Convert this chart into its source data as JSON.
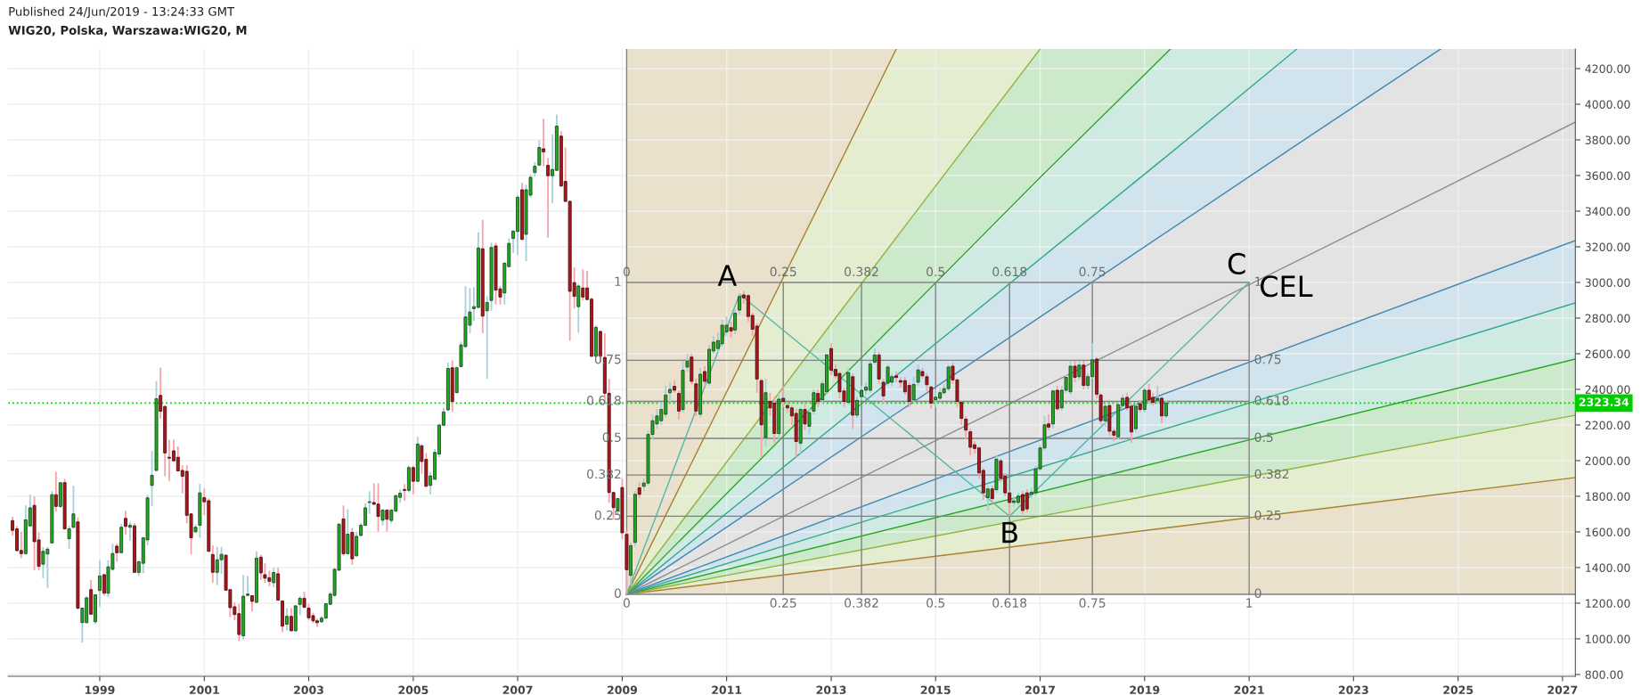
{
  "chart_data": {
    "type": "candlestick",
    "title": "WIG20, Polska, Warszawa:WIG20, M",
    "annotations": [
      "Published 24/Jun/2019 - 13:24:33 GMT",
      {
        "text": "A",
        "x": "2011-04",
        "y": 2934
      },
      {
        "text": "B",
        "x": "2016-06",
        "y": 1688
      },
      {
        "text": "C",
        "x": "2021-01",
        "y": 3000
      },
      {
        "text": "CEL",
        "x": "2021-01",
        "y": 3000
      },
      {
        "text": "1",
        "x": "2009-02",
        "y": 3000
      },
      {
        "text": "0.75",
        "x": "2009-02",
        "y": 2563
      },
      {
        "text": "0.618",
        "x": "2009-02",
        "y": 2332
      },
      {
        "text": "0.5",
        "x": "2009-02",
        "y": 2125
      },
      {
        "text": "0.382",
        "x": "2009-02",
        "y": 1919
      },
      {
        "text": "0.25",
        "x": "2009-02",
        "y": 1688
      },
      {
        "text": "0",
        "x": "2009-02",
        "y": 1250
      },
      {
        "text": "0",
        "x": "2009-02",
        "y": 3000
      },
      {
        "text": "0.25",
        "x": "2012-02",
        "y": 3000
      },
      {
        "text": "0.382",
        "x": "2013-08",
        "y": 3000
      },
      {
        "text": "0.5",
        "x": "2015-01",
        "y": 3000
      },
      {
        "text": "0.618",
        "x": "2016-06",
        "y": 3000
      },
      {
        "text": "0.75",
        "x": "2018-01",
        "y": 3000
      },
      {
        "text": "1",
        "x": "2021-01",
        "y": 3000
      },
      {
        "text": "0.75",
        "x": "2021-01",
        "y": 2563
      },
      {
        "text": "0.618",
        "x": "2021-01",
        "y": 2332
      },
      {
        "text": "0.5",
        "x": "2021-01",
        "y": 2125
      },
      {
        "text": "0.382",
        "x": "2021-01",
        "y": 1919
      },
      {
        "text": "0.25",
        "x": "2021-01",
        "y": 1688
      },
      {
        "text": "0",
        "x": "2021-01",
        "y": 1250
      },
      {
        "text": "0",
        "x": "2009-02",
        "y": 1250
      },
      {
        "text": "0.25",
        "x": "2012-02",
        "y": 1250
      },
      {
        "text": "0.382",
        "x": "2013-08",
        "y": 1250
      },
      {
        "text": "0.5",
        "x": "2015-01",
        "y": 1250
      },
      {
        "text": "0.618",
        "x": "2016-06",
        "y": 1250
      },
      {
        "text": "0.75",
        "x": "2018-01",
        "y": 1250
      },
      {
        "text": "1",
        "x": "2021-01",
        "y": 1250
      }
    ],
    "x": [
      "1997-05",
      "1997-06",
      "1997-07",
      "1997-08",
      "1997-09",
      "1997-10",
      "1997-11",
      "1997-12",
      "1998-01",
      "1998-02",
      "1998-03",
      "1998-04",
      "1998-05",
      "1998-06",
      "1998-07",
      "1998-08",
      "1998-09",
      "1998-10",
      "1998-11",
      "1998-12",
      "1999-01",
      "1999-02",
      "1999-03",
      "1999-04",
      "1999-05",
      "1999-06",
      "1999-07",
      "1999-08",
      "1999-09",
      "1999-10",
      "1999-11",
      "1999-12",
      "2000-01",
      "2000-02",
      "2000-03",
      "2000-04",
      "2000-05",
      "2000-06",
      "2000-07",
      "2000-08",
      "2000-09",
      "2000-10",
      "2000-11",
      "2000-12",
      "2001-01",
      "2001-02",
      "2001-03",
      "2001-04",
      "2001-05",
      "2001-06",
      "2001-07",
      "2001-08",
      "2001-09",
      "2001-10",
      "2001-11",
      "2001-12",
      "2002-01",
      "2002-02",
      "2002-03",
      "2002-04",
      "2002-05",
      "2002-06",
      "2002-07",
      "2002-08",
      "2002-09",
      "2002-10",
      "2002-11",
      "2002-12",
      "2003-01",
      "2003-02",
      "2003-03",
      "2003-04",
      "2003-05",
      "2003-06",
      "2003-07",
      "2003-08",
      "2003-09",
      "2003-10",
      "2003-11",
      "2003-12",
      "2004-01",
      "2004-02",
      "2004-03",
      "2004-04",
      "2004-05",
      "2004-06",
      "2004-07",
      "2004-08",
      "2004-09",
      "2004-10",
      "2004-11",
      "2004-12",
      "2005-01",
      "2005-02",
      "2005-03",
      "2005-04",
      "2005-05",
      "2005-06",
      "2005-07",
      "2005-08",
      "2005-09",
      "2005-10",
      "2005-11",
      "2005-12",
      "2006-01",
      "2006-02",
      "2006-03",
      "2006-04",
      "2006-05",
      "2006-06",
      "2006-07",
      "2006-08",
      "2006-09",
      "2006-10",
      "2006-11",
      "2006-12",
      "2007-01",
      "2007-02",
      "2007-03",
      "2007-04",
      "2007-05",
      "2007-06",
      "2007-07",
      "2007-08",
      "2007-09",
      "2007-10",
      "2007-11",
      "2007-12",
      "2008-01",
      "2008-02",
      "2008-03",
      "2008-04",
      "2008-05",
      "2008-06",
      "2008-07",
      "2008-08",
      "2008-09",
      "2008-10",
      "2008-11",
      "2008-12",
      "2009-01",
      "2009-02",
      "2009-03",
      "2009-04",
      "2009-05",
      "2009-06",
      "2009-07",
      "2009-08",
      "2009-09",
      "2009-10",
      "2009-11",
      "2009-12",
      "2010-01",
      "2010-02",
      "2010-03",
      "2010-04",
      "2010-05",
      "2010-06",
      "2010-07",
      "2010-08",
      "2010-09",
      "2010-10",
      "2010-11",
      "2010-12",
      "2011-01",
      "2011-02",
      "2011-03",
      "2011-04",
      "2011-05",
      "2011-06",
      "2011-07",
      "2011-08",
      "2011-09",
      "2011-10",
      "2011-11",
      "2011-12",
      "2012-01",
      "2012-02",
      "2012-03",
      "2012-04",
      "2012-05",
      "2012-06",
      "2012-07",
      "2012-08",
      "2012-09",
      "2012-10",
      "2012-11",
      "2012-12",
      "2013-01",
      "2013-02",
      "2013-03",
      "2013-04",
      "2013-05",
      "2013-06",
      "2013-07",
      "2013-08",
      "2013-09",
      "2013-10",
      "2013-11",
      "2013-12",
      "2014-01",
      "2014-02",
      "2014-03",
      "2014-04",
      "2014-05",
      "2014-06",
      "2014-07",
      "2014-08",
      "2014-09",
      "2014-10",
      "2014-11",
      "2014-12",
      "2015-01",
      "2015-02",
      "2015-03",
      "2015-04",
      "2015-05",
      "2015-06",
      "2015-07",
      "2015-08",
      "2015-09",
      "2015-10",
      "2015-11",
      "2015-12",
      "2016-01",
      "2016-02",
      "2016-03",
      "2016-04",
      "2016-05",
      "2016-06",
      "2016-07",
      "2016-08",
      "2016-09",
      "2016-10",
      "2016-11",
      "2016-12",
      "2017-01",
      "2017-02",
      "2017-03",
      "2017-04",
      "2017-05",
      "2017-06",
      "2017-07",
      "2017-08",
      "2017-09",
      "2017-10",
      "2017-11",
      "2017-12",
      "2018-01",
      "2018-02",
      "2018-03",
      "2018-04",
      "2018-05",
      "2018-06",
      "2018-07",
      "2018-08",
      "2018-09",
      "2018-10",
      "2018-11",
      "2018-12",
      "2019-01",
      "2019-02",
      "2019-03",
      "2019-04",
      "2019-05",
      "2019-06"
    ],
    "ohlc": [
      [
        1663,
        1685,
        1580,
        1609
      ],
      [
        1617,
        1634,
        1491,
        1495
      ],
      [
        1496,
        1601,
        1453,
        1478
      ],
      [
        1478,
        1749,
        1474,
        1668
      ],
      [
        1634,
        1809,
        1630,
        1735
      ],
      [
        1749,
        1799,
        1385,
        1545
      ],
      [
        1555,
        1597,
        1385,
        1407
      ],
      [
        1419,
        1516,
        1340,
        1491
      ],
      [
        1476,
        1516,
        1286,
        1503
      ],
      [
        1538,
        1828,
        1536,
        1809
      ],
      [
        1809,
        1937,
        1715,
        1743
      ],
      [
        1743,
        1880,
        1735,
        1876
      ],
      [
        1876,
        1897,
        1614,
        1617
      ],
      [
        1562,
        1634,
        1505,
        1617
      ],
      [
        1626,
        1860,
        1620,
        1701
      ],
      [
        1656,
        1681,
        1165,
        1172
      ],
      [
        1091,
        1175,
        978,
        1172
      ],
      [
        1091,
        1239,
        1085,
        1230
      ],
      [
        1276,
        1331,
        1135,
        1138
      ],
      [
        1096,
        1250,
        1082,
        1247
      ],
      [
        1271,
        1441,
        1180,
        1353
      ],
      [
        1360,
        1365,
        1244,
        1256
      ],
      [
        1256,
        1441,
        1234,
        1404
      ],
      [
        1390,
        1533,
        1382,
        1479
      ],
      [
        1520,
        1533,
        1432,
        1483
      ],
      [
        1483,
        1646,
        1480,
        1626
      ],
      [
        1676,
        1718,
        1584,
        1631
      ],
      [
        1626,
        1656,
        1550,
        1637
      ],
      [
        1634,
        1648,
        1370,
        1373
      ],
      [
        1373,
        1441,
        1352,
        1432
      ],
      [
        1424,
        1570,
        1368,
        1567
      ],
      [
        1555,
        1809,
        1525,
        1791
      ],
      [
        1861,
        2055,
        1743,
        1917
      ],
      [
        1945,
        2447,
        1940,
        2347
      ],
      [
        2366,
        2521,
        2236,
        2277
      ],
      [
        2304,
        2310,
        1912,
        2043
      ],
      [
        2019,
        2117,
        1886,
        2014
      ],
      [
        2055,
        2117,
        1995,
        1999
      ],
      [
        2019,
        2080,
        1940,
        1942
      ],
      [
        1945,
        1974,
        1816,
        1912
      ],
      [
        1940,
        1974,
        1648,
        1693
      ],
      [
        1701,
        1705,
        1474,
        1567
      ],
      [
        1601,
        1642,
        1592,
        1626
      ],
      [
        1637,
        1870,
        1567,
        1819
      ],
      [
        1792,
        1844,
        1693,
        1769
      ],
      [
        1775,
        1789,
        1488,
        1491
      ],
      [
        1473,
        1525,
        1315,
        1373
      ],
      [
        1373,
        1516,
        1301,
        1444
      ],
      [
        1444,
        1516,
        1365,
        1474
      ],
      [
        1469,
        1475,
        1270,
        1273
      ],
      [
        1276,
        1280,
        1121,
        1175
      ],
      [
        1180,
        1205,
        1104,
        1136
      ],
      [
        1141,
        1197,
        987,
        1024
      ],
      [
        1017,
        1357,
        995,
        1239
      ],
      [
        1244,
        1353,
        1239,
        1251
      ],
      [
        1242,
        1245,
        1155,
        1210
      ],
      [
        1205,
        1491,
        1200,
        1453
      ],
      [
        1458,
        1471,
        1331,
        1370
      ],
      [
        1360,
        1424,
        1315,
        1340
      ],
      [
        1343,
        1382,
        1294,
        1323
      ],
      [
        1315,
        1399,
        1289,
        1372
      ],
      [
        1365,
        1399,
        1215,
        1217
      ],
      [
        1212,
        1215,
        1037,
        1071
      ],
      [
        1082,
        1172,
        1049,
        1126
      ],
      [
        1126,
        1172,
        1042,
        1045
      ],
      [
        1045,
        1190,
        1042,
        1185
      ],
      [
        1193,
        1239,
        1133,
        1227
      ],
      [
        1227,
        1264,
        1172,
        1177
      ],
      [
        1172,
        1197,
        1104,
        1118
      ],
      [
        1130,
        1147,
        1088,
        1101
      ],
      [
        1101,
        1113,
        1066,
        1091
      ],
      [
        1096,
        1130,
        1088,
        1116
      ],
      [
        1116,
        1200,
        1113,
        1197
      ],
      [
        1194,
        1264,
        1188,
        1251
      ],
      [
        1244,
        1399,
        1234,
        1390
      ],
      [
        1385,
        1650,
        1380,
        1643
      ],
      [
        1673,
        1749,
        1466,
        1478
      ],
      [
        1478,
        1727,
        1474,
        1587
      ],
      [
        1597,
        1621,
        1415,
        1449
      ],
      [
        1466,
        1600,
        1460,
        1575
      ],
      [
        1580,
        1651,
        1575,
        1637
      ],
      [
        1637,
        1760,
        1634,
        1735
      ],
      [
        1765,
        1828,
        1701,
        1769
      ],
      [
        1765,
        1873,
        1750,
        1755
      ],
      [
        1756,
        1872,
        1601,
        1687
      ],
      [
        1666,
        1728,
        1636,
        1722
      ],
      [
        1722,
        1728,
        1601,
        1671
      ],
      [
        1664,
        1728,
        1648,
        1722
      ],
      [
        1717,
        1810,
        1712,
        1803
      ],
      [
        1794,
        1838,
        1763,
        1817
      ],
      [
        1838,
        1868,
        1775,
        1833
      ],
      [
        1833,
        1972,
        1822,
        1961
      ],
      [
        1961,
        1972,
        1810,
        1884
      ],
      [
        1884,
        2134,
        1880,
        2093
      ],
      [
        2083,
        2093,
        1926,
        1995
      ],
      [
        2007,
        2042,
        1852,
        1856
      ],
      [
        1861,
        1937,
        1810,
        1914
      ],
      [
        1896,
        2065,
        1891,
        2046
      ],
      [
        2037,
        2208,
        2018,
        2199
      ],
      [
        2199,
        2297,
        2192,
        2273
      ],
      [
        2285,
        2551,
        2278,
        2517
      ],
      [
        2521,
        2563,
        2273,
        2331
      ],
      [
        2382,
        2528,
        2378,
        2521
      ],
      [
        2528,
        2668,
        2524,
        2649
      ],
      [
        2640,
        2980,
        2633,
        2806
      ],
      [
        2760,
        2969,
        2714,
        2834
      ],
      [
        2853,
        2973,
        2783,
        2864
      ],
      [
        2860,
        3281,
        2853,
        3193
      ],
      [
        3189,
        3351,
        2714,
        2811
      ],
      [
        2841,
        2922,
        2459,
        2887
      ],
      [
        2899,
        3223,
        2841,
        3196
      ],
      [
        3205,
        3223,
        2876,
        2957
      ],
      [
        2964,
        2980,
        2876,
        2918
      ],
      [
        2941,
        3112,
        2876,
        3108
      ],
      [
        3089,
        3247,
        3084,
        3219
      ],
      [
        3247,
        3293,
        3166,
        3288
      ],
      [
        3286,
        3490,
        3154,
        3478
      ],
      [
        3520,
        3560,
        3235,
        3242
      ],
      [
        3270,
        3548,
        3119,
        3520
      ],
      [
        3490,
        3606,
        3478,
        3590
      ],
      [
        3617,
        3675,
        3594,
        3652
      ],
      [
        3659,
        3798,
        3652,
        3757
      ],
      [
        3750,
        3919,
        3652,
        3733
      ],
      [
        3657,
        3699,
        3251,
        3599
      ],
      [
        3599,
        3831,
        3444,
        3634
      ],
      [
        3629,
        3942,
        3625,
        3877
      ],
      [
        3821,
        3849,
        3536,
        3541
      ],
      [
        3567,
        3757,
        3450,
        3455
      ],
      [
        3455,
        3460,
        2672,
        2950
      ],
      [
        2999,
        3084,
        2853,
        2922
      ],
      [
        2864,
        2992,
        2718,
        2980
      ],
      [
        2969,
        3073,
        2899,
        2918
      ],
      [
        2969,
        3066,
        2899,
        2904
      ],
      [
        2906,
        2915,
        2580,
        2586
      ],
      [
        2586,
        2760,
        2580,
        2748
      ],
      [
        2725,
        2730,
        2551,
        2586
      ],
      [
        2579,
        2714,
        2320,
        2378
      ],
      [
        2378,
        2459,
        1763,
        1821
      ],
      [
        1821,
        1826,
        1671,
        1736
      ],
      [
        1722,
        1791,
        1694,
        1787
      ],
      [
        1849,
        1900,
        1560,
        1595
      ],
      [
        1586,
        1610,
        1250,
        1388
      ],
      [
        1356,
        1540,
        1300,
        1523
      ],
      [
        1541,
        1830,
        1520,
        1811
      ],
      [
        1847,
        1880,
        1790,
        1811
      ],
      [
        1856,
        1900,
        1830,
        1874
      ],
      [
        1874,
        2170,
        1860,
        2147
      ],
      [
        2147,
        2260,
        2120,
        2224
      ],
      [
        2206,
        2290,
        2180,
        2251
      ],
      [
        2224,
        2330,
        2200,
        2287
      ],
      [
        2260,
        2420,
        2240,
        2368
      ],
      [
        2381,
        2440,
        2330,
        2400
      ],
      [
        2417,
        2450,
        2380,
        2395
      ],
      [
        2377,
        2395,
        2230,
        2278
      ],
      [
        2287,
        2560,
        2270,
        2507
      ],
      [
        2525,
        2600,
        2500,
        2557
      ],
      [
        2581,
        2600,
        2430,
        2445
      ],
      [
        2431,
        2460,
        2250,
        2278
      ],
      [
        2260,
        2520,
        2240,
        2485
      ],
      [
        2500,
        2530,
        2420,
        2445
      ],
      [
        2435,
        2650,
        2420,
        2625
      ],
      [
        2615,
        2700,
        2600,
        2665
      ],
      [
        2629,
        2720,
        2610,
        2674
      ],
      [
        2656,
        2790,
        2640,
        2760
      ],
      [
        2723,
        2810,
        2700,
        2760
      ],
      [
        2746,
        2780,
        2690,
        2728
      ],
      [
        2733,
        2850,
        2710,
        2827
      ],
      [
        2845,
        2940,
        2820,
        2921
      ],
      [
        2930,
        2950,
        2880,
        2913
      ],
      [
        2926,
        2935,
        2780,
        2809
      ],
      [
        2815,
        2830,
        2700,
        2737
      ],
      [
        2755,
        2770,
        2380,
        2458
      ],
      [
        2449,
        2460,
        2020,
        2201
      ],
      [
        2129,
        2460,
        2080,
        2381
      ],
      [
        2332,
        2380,
        2250,
        2296
      ],
      [
        2323,
        2360,
        2100,
        2152
      ],
      [
        2152,
        2380,
        2120,
        2345
      ],
      [
        2350,
        2420,
        2300,
        2332
      ],
      [
        2309,
        2330,
        2270,
        2296
      ],
      [
        2296,
        2310,
        2200,
        2251
      ],
      [
        2265,
        2290,
        2020,
        2107
      ],
      [
        2098,
        2300,
        2040,
        2287
      ],
      [
        2287,
        2330,
        2170,
        2206
      ],
      [
        2193,
        2290,
        2150,
        2269
      ],
      [
        2278,
        2400,
        2260,
        2381
      ],
      [
        2377,
        2400,
        2300,
        2332
      ],
      [
        2341,
        2450,
        2320,
        2431
      ],
      [
        2386,
        2600,
        2370,
        2593
      ],
      [
        2629,
        2660,
        2480,
        2507
      ],
      [
        2512,
        2540,
        2460,
        2476
      ],
      [
        2489,
        2500,
        2350,
        2386
      ],
      [
        2391,
        2410,
        2300,
        2332
      ],
      [
        2327,
        2520,
        2310,
        2494
      ],
      [
        2471,
        2490,
        2180,
        2255
      ],
      [
        2255,
        2360,
        2240,
        2338
      ],
      [
        2359,
        2420,
        2340,
        2395
      ],
      [
        2395,
        2440,
        2370,
        2413
      ],
      [
        2395,
        2560,
        2380,
        2543
      ],
      [
        2553,
        2630,
        2540,
        2593
      ],
      [
        2593,
        2610,
        2430,
        2458
      ],
      [
        2440,
        2460,
        2320,
        2363
      ],
      [
        2435,
        2540,
        2420,
        2525
      ],
      [
        2440,
        2490,
        2420,
        2471
      ],
      [
        2476,
        2500,
        2440,
        2467
      ],
      [
        2449,
        2470,
        2410,
        2440
      ],
      [
        2449,
        2470,
        2370,
        2386
      ],
      [
        2422,
        2440,
        2300,
        2332
      ],
      [
        2341,
        2470,
        2320,
        2427
      ],
      [
        2440,
        2540,
        2420,
        2509
      ],
      [
        2500,
        2520,
        2460,
        2476
      ],
      [
        2471,
        2490,
        2390,
        2426
      ],
      [
        2413,
        2420,
        2290,
        2323
      ],
      [
        2341,
        2400,
        2300,
        2356
      ],
      [
        2350,
        2410,
        2340,
        2381
      ],
      [
        2381,
        2430,
        2370,
        2404
      ],
      [
        2404,
        2540,
        2390,
        2525
      ],
      [
        2530,
        2550,
        2430,
        2453
      ],
      [
        2453,
        2460,
        2300,
        2332
      ],
      [
        2327,
        2340,
        2200,
        2237
      ],
      [
        2233,
        2250,
        2120,
        2171
      ],
      [
        2162,
        2180,
        2030,
        2075
      ],
      [
        2089,
        2110,
        2040,
        2068
      ],
      [
        2071,
        2080,
        1900,
        1931
      ],
      [
        1945,
        1960,
        1780,
        1819
      ],
      [
        1792,
        1860,
        1720,
        1841
      ],
      [
        1841,
        1860,
        1760,
        1787
      ],
      [
        1837,
        2030,
        1820,
        2008
      ],
      [
        1999,
        2010,
        1880,
        1900
      ],
      [
        1913,
        1930,
        1800,
        1819
      ],
      [
        1819,
        1830,
        1690,
        1765
      ],
      [
        1765,
        1800,
        1740,
        1774
      ],
      [
        1765,
        1820,
        1750,
        1801
      ],
      [
        1810,
        1830,
        1700,
        1720
      ],
      [
        1819,
        1840,
        1710,
        1729
      ],
      [
        1810,
        1850,
        1790,
        1823
      ],
      [
        1819,
        1970,
        1800,
        1954
      ],
      [
        1954,
        2090,
        1940,
        2071
      ],
      [
        2071,
        2250,
        2060,
        2201
      ],
      [
        2206,
        2260,
        2170,
        2188
      ],
      [
        2206,
        2400,
        2180,
        2391
      ],
      [
        2395,
        2420,
        2280,
        2291
      ],
      [
        2296,
        2420,
        2280,
        2395
      ],
      [
        2395,
        2480,
        2380,
        2467
      ],
      [
        2386,
        2560,
        2370,
        2530
      ],
      [
        2530,
        2560,
        2440,
        2467
      ],
      [
        2471,
        2560,
        2450,
        2536
      ],
      [
        2536,
        2560,
        2400,
        2422
      ],
      [
        2422,
        2490,
        2400,
        2471
      ],
      [
        2471,
        2660,
        2460,
        2566
      ],
      [
        2570,
        2580,
        2350,
        2373
      ],
      [
        2368,
        2380,
        2200,
        2224
      ],
      [
        2224,
        2320,
        2190,
        2305
      ],
      [
        2309,
        2320,
        2140,
        2165
      ],
      [
        2165,
        2180,
        2110,
        2143
      ],
      [
        2134,
        2330,
        2120,
        2314
      ],
      [
        2309,
        2370,
        2290,
        2350
      ],
      [
        2355,
        2380,
        2280,
        2296
      ],
      [
        2305,
        2320,
        2100,
        2161
      ],
      [
        2179,
        2320,
        2160,
        2305
      ],
      [
        2319,
        2340,
        2270,
        2287
      ],
      [
        2287,
        2410,
        2270,
        2395
      ],
      [
        2395,
        2430,
        2320,
        2341
      ],
      [
        2355,
        2380,
        2310,
        2327
      ],
      [
        2337,
        2420,
        2320,
        2350
      ],
      [
        2350,
        2360,
        2210,
        2251
      ],
      [
        2251,
        2335,
        2240,
        2323
      ]
    ],
    "series": [
      {
        "type": "line",
        "color": "#a8812e",
        "x": [
          "2009-02",
          "2027-04"
        ],
        "values": [
          1250,
          1905
        ],
        "lower": [
          1250,
          1250
        ],
        "upper": [
          1250,
          1905
        ]
      },
      {
        "type": "line",
        "color": "#8fb33a",
        "x": [
          "2009-02",
          "2027-04"
        ],
        "values": [
          1250,
          2255
        ],
        "lower": [
          1250,
          1905
        ],
        "upper": [
          1250,
          2255
        ]
      },
      {
        "type": "line",
        "color": "#2aa52a",
        "x": [
          "2009-02",
          "2027-04"
        ],
        "values": [
          1250,
          2570
        ],
        "lower": [
          1250,
          2255
        ],
        "upper": [
          1250,
          2570
        ]
      },
      {
        "type": "line",
        "color": "#33a88a",
        "x": [
          "2009-02",
          "2027-04"
        ],
        "values": [
          1250,
          2885
        ],
        "lower": [
          1250,
          2570
        ],
        "upper": [
          1250,
          2885
        ]
      },
      {
        "type": "line",
        "color": "#3f88b0",
        "x": [
          "2009-02",
          "2027-04"
        ],
        "values": [
          1250,
          3235
        ],
        "lower": [
          1250,
          2885
        ],
        "upper": [
          1250,
          3235
        ]
      },
      {
        "type": "line",
        "color": "#8c8c8c",
        "x": [
          "2009-02",
          "2024-09",
          "2027-04"
        ],
        "values": [
          1250,
          3521,
          3900
        ],
        "lower": [
          1250,
          2951,
          3235
        ],
        "upper": [
          1250,
          4310,
          4310
        ]
      },
      {
        "type": "line",
        "color": "#3f88b0",
        "x": [
          "2009-02",
          "2021-12",
          "2024-09"
        ],
        "values": [
          1250,
          3773,
          4310
        ],
        "lower": [
          1250,
          3773,
          4310
        ],
        "upper": [
          1250,
          4310,
          4310
        ]
      },
      {
        "type": "line",
        "color": "#33a88a",
        "x": [
          "2009-02",
          "2019-07",
          "2021-12"
        ],
        "values": [
          1250,
          3725,
          4310
        ],
        "lower": [
          1250,
          3725,
          4310
        ],
        "upper": [
          1250,
          4310,
          4310
        ]
      },
      {
        "type": "line",
        "color": "#2aa52a",
        "x": [
          "2009-02",
          "2017-01",
          "2019-07"
        ],
        "values": [
          1250,
          3589,
          4310
        ],
        "lower": [
          1250,
          3589,
          4310
        ],
        "upper": [
          1250,
          4310,
          4310
        ]
      },
      {
        "type": "line",
        "color": "#8fb33a",
        "x": [
          "2009-02",
          "2014-04",
          "2017-01"
        ],
        "values": [
          1250,
          3251,
          4310
        ],
        "lower": [
          1250,
          3251,
          4310
        ],
        "upper": [
          1250,
          4310,
          4310
        ]
      },
      {
        "type": "line",
        "color": "#a8812e",
        "x": [
          "2009-02",
          "2014-04"
        ],
        "values": [
          1250,
          4310
        ],
        "lower": [
          1250,
          4310
        ],
        "upper": [
          4310,
          4310
        ]
      },
      {
        "type": "line",
        "color": "#808080",
        "x": [
          "2009-02",
          "2027-04"
        ],
        "values": [
          1250,
          1250
        ]
      },
      {
        "type": "line",
        "color": "#808080",
        "x": [
          "2009-02",
          "2021-01"
        ],
        "values": [
          1688,
          1688
        ]
      },
      {
        "type": "line",
        "color": "#808080",
        "x": [
          "2009-02",
          "2021-01"
        ],
        "values": [
          1919,
          1919
        ]
      },
      {
        "type": "line",
        "color": "#808080",
        "x": [
          "2009-02",
          "2021-01"
        ],
        "values": [
          2125,
          2125
        ]
      },
      {
        "type": "line",
        "color": "#808080",
        "x": [
          "2009-02",
          "2021-01"
        ],
        "values": [
          2332,
          2332
        ]
      },
      {
        "type": "line",
        "color": "#808080",
        "x": [
          "2009-02",
          "2021-01"
        ],
        "values": [
          2563,
          2563
        ]
      },
      {
        "type": "line",
        "color": "#808080",
        "x": [
          "2009-02",
          "2021-01"
        ],
        "values": [
          3000,
          3000
        ]
      },
      {
        "type": "line",
        "color": "#808080",
        "x": [
          "2009-02",
          "2009-02"
        ],
        "values": [
          1250,
          4310
        ]
      },
      {
        "type": "line",
        "color": "#808080",
        "x": [
          "2012-02",
          "2012-02"
        ],
        "values": [
          1250,
          3000
        ]
      },
      {
        "type": "line",
        "color": "#808080",
        "x": [
          "2013-08",
          "2013-08"
        ],
        "values": [
          1250,
          3000
        ]
      },
      {
        "type": "line",
        "color": "#808080",
        "x": [
          "2015-01",
          "2015-01"
        ],
        "values": [
          1250,
          3000
        ]
      },
      {
        "type": "line",
        "color": "#808080",
        "x": [
          "2016-06",
          "2016-06"
        ],
        "values": [
          1250,
          3000
        ]
      },
      {
        "type": "line",
        "color": "#808080",
        "x": [
          "2018-01",
          "2018-01"
        ],
        "values": [
          1250,
          3000
        ]
      },
      {
        "type": "line",
        "color": "#808080",
        "x": [
          "2021-01",
          "2021-01"
        ],
        "values": [
          1250,
          3000
        ]
      },
      {
        "type": "line",
        "color": "#4fb7a5",
        "x": [
          "2009-02",
          "2011-04"
        ],
        "values": [
          1250,
          2934
        ]
      },
      {
        "type": "line",
        "color": "#4fb7a5",
        "x": [
          "2011-04",
          "2016-06"
        ],
        "values": [
          2934,
          1688
        ]
      },
      {
        "type": "line",
        "color": "#4fb7a5",
        "x": [
          "2016-06",
          "2021-01"
        ],
        "values": [
          1688,
          3000
        ]
      }
    ],
    "ref_lines": [
      {
        "axis": "y",
        "value": 2323.34,
        "label": "2323.34",
        "color": "#00cc00",
        "line_style": "dotted"
      }
    ],
    "xlim": [
      "1997-04",
      "2027-04"
    ],
    "ylim": [
      790,
      4310
    ],
    "xticks": [
      {
        "value": "1999-01",
        "label": "1999"
      },
      {
        "value": "2001-01",
        "label": "2001"
      },
      {
        "value": "2003-01",
        "label": "2003"
      },
      {
        "value": "2005-01",
        "label": "2005"
      },
      {
        "value": "2007-01",
        "label": "2007"
      },
      {
        "value": "2009-01",
        "label": "2009"
      },
      {
        "value": "2011-01",
        "label": "2011"
      },
      {
        "value": "2013-01",
        "label": "2013"
      },
      {
        "value": "2015-01",
        "label": "2015"
      },
      {
        "value": "2017-01",
        "label": "2017"
      },
      {
        "value": "2019-01",
        "label": "2019"
      },
      {
        "value": "2021-01",
        "label": "2021"
      },
      {
        "value": "2023-01",
        "label": "2023"
      },
      {
        "value": "2025-01",
        "label": "2025"
      },
      {
        "value": "2027-01",
        "label": "2027"
      }
    ],
    "yticks": [
      {
        "value": 800,
        "label": "800.00"
      },
      {
        "value": 1000,
        "label": "1000.00"
      },
      {
        "value": 1200,
        "label": "1200.00"
      },
      {
        "value": 1400,
        "label": "1400.00"
      },
      {
        "value": 1600,
        "label": "1600.00"
      },
      {
        "value": 1800,
        "label": "1800.00"
      },
      {
        "value": 2000,
        "label": "2000.00"
      },
      {
        "value": 2200,
        "label": "2200.00"
      },
      {
        "value": 2400,
        "label": "2400.00"
      },
      {
        "value": 2600,
        "label": "2600.00"
      },
      {
        "value": 2800,
        "label": "2800.00"
      },
      {
        "value": 3000,
        "label": "3000.00"
      },
      {
        "value": 3200,
        "label": "3200.00"
      },
      {
        "value": 3400,
        "label": "3400.00"
      },
      {
        "value": 3600,
        "label": "3600.00"
      },
      {
        "value": 3800,
        "label": "3800.00"
      },
      {
        "value": 4000,
        "label": "4000.00"
      },
      {
        "value": 4200,
        "label": "4200.00"
      }
    ],
    "grid": true
  }
}
